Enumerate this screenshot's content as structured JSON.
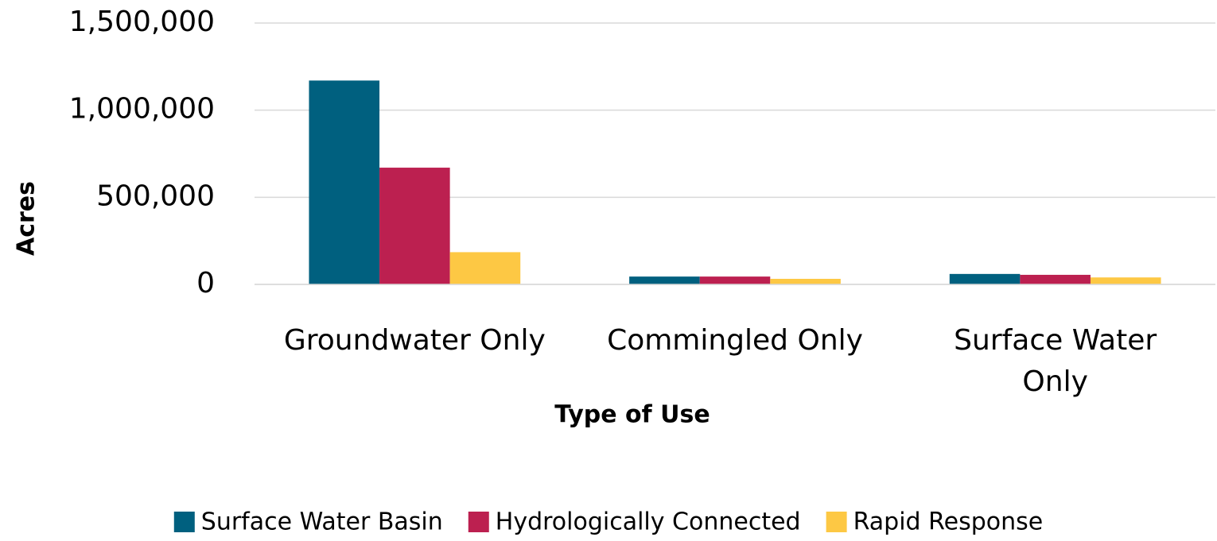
{
  "chart_data": {
    "type": "bar",
    "x_label": "Type of Use",
    "y_label": "Acres",
    "categories": [
      "Groundwater Only",
      "Commingled Only",
      "Surface Water Only"
    ],
    "series": [
      {
        "name": "Surface Water Basin",
        "color": "#00607f",
        "values": [
          1170000,
          45000,
          60000
        ]
      },
      {
        "name": "Hydrologically Connected",
        "color": "#bc2050",
        "values": [
          670000,
          45000,
          55000
        ]
      },
      {
        "name": "Rapid Response",
        "color": "#fdc844",
        "values": [
          185000,
          32000,
          40000
        ]
      }
    ],
    "ylim": [
      0,
      1500000
    ],
    "yticks": [
      0,
      {
        "value": 500000,
        "label": "500,000"
      },
      {
        "value": 1000000,
        "label": "1,000,000"
      },
      {
        "value": 1500000,
        "label": "1,500,000"
      }
    ],
    "grid": true,
    "legend": "bottom"
  }
}
